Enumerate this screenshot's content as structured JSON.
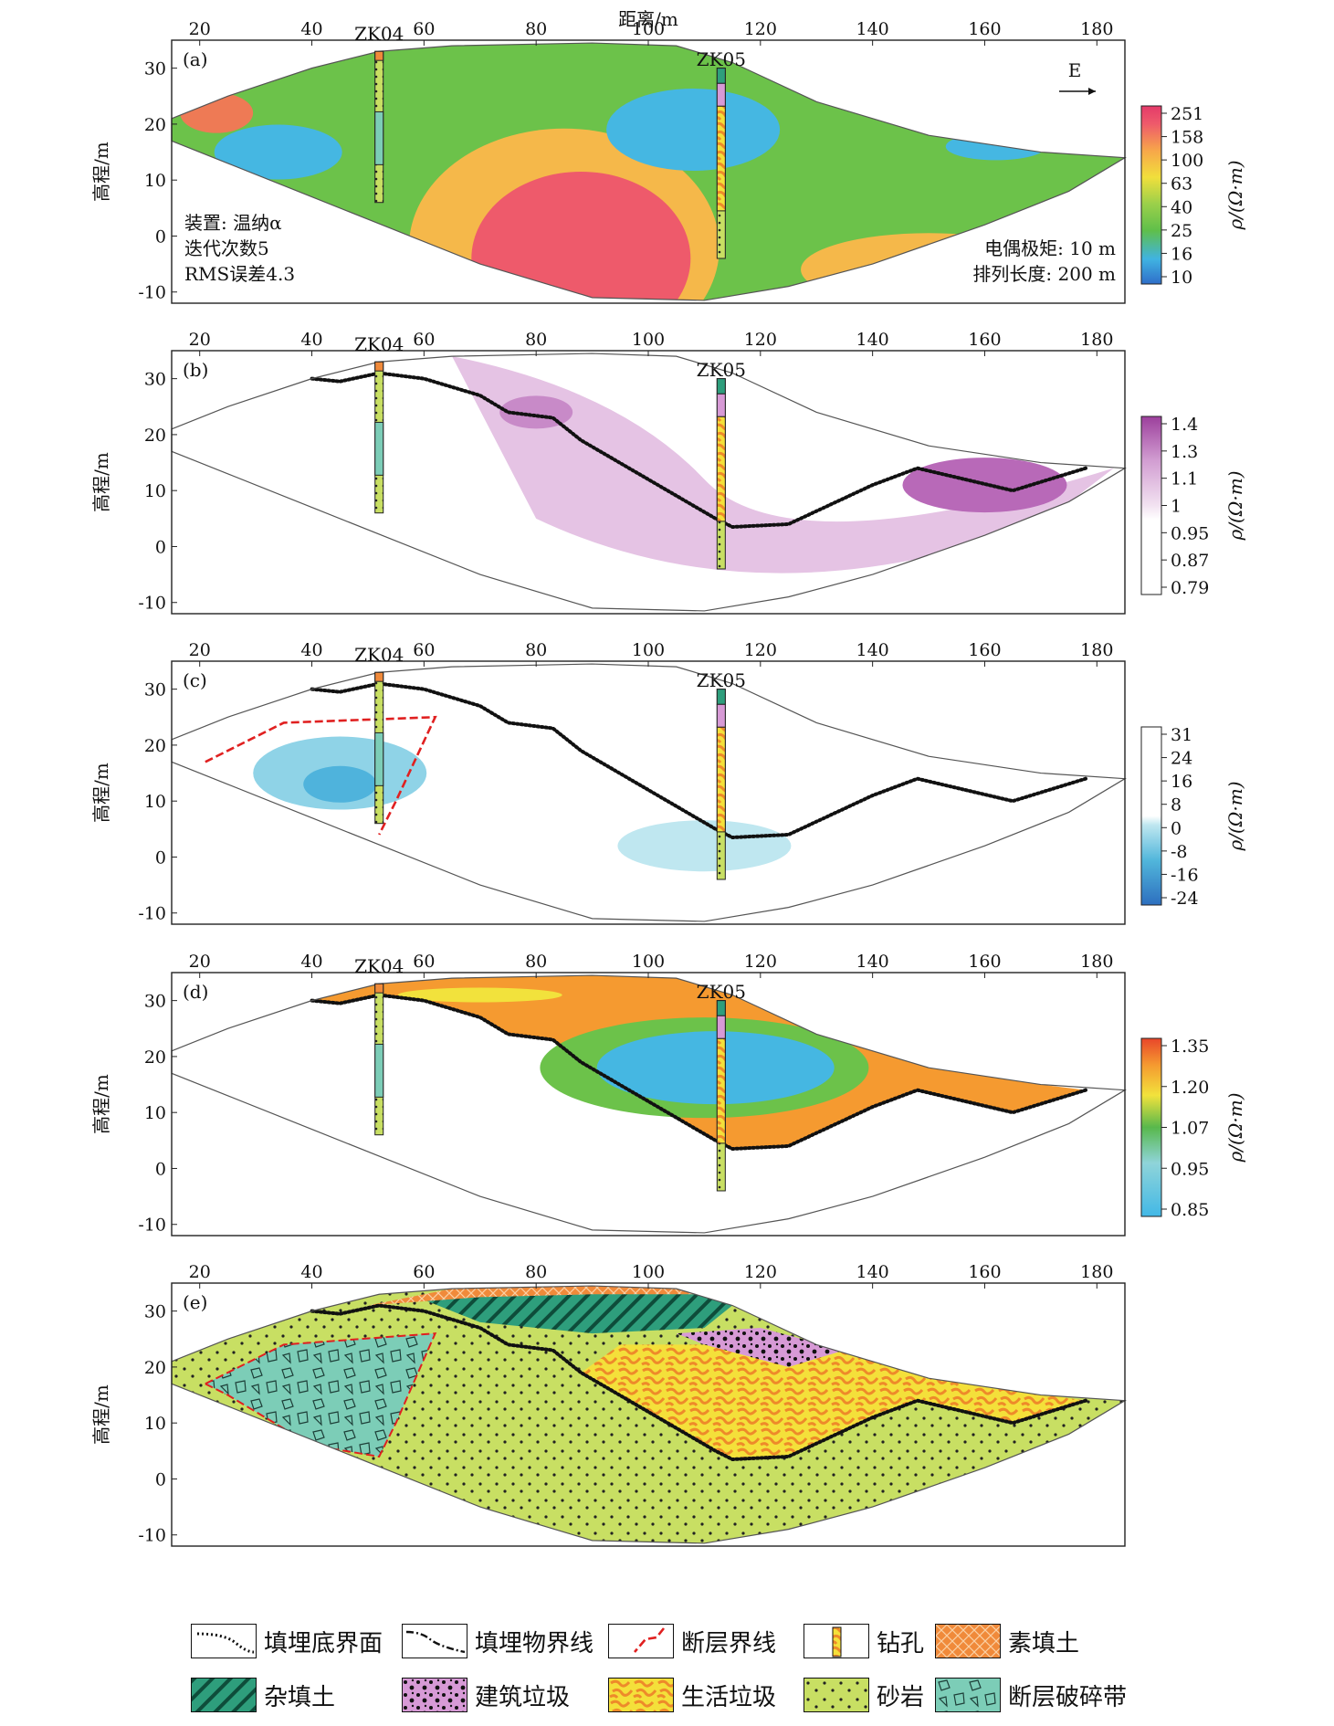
{
  "figure": {
    "xaxis_label": "距离/m",
    "yaxis_label": "高程/m",
    "x_ticks": [
      "20",
      "40",
      "60",
      "80",
      "100",
      "120",
      "140",
      "160",
      "180"
    ],
    "y_ticks": [
      "30",
      "20",
      "10",
      "0",
      "-10"
    ],
    "boreholes": [
      "ZK04",
      "ZK05"
    ],
    "east_label": "E",
    "colorbar_title": "ρ/(Ω·m)"
  },
  "panels": [
    {
      "id": "(a)",
      "colorbar_ticks": [
        "251",
        "158",
        "100",
        "63",
        "40",
        "25",
        "16",
        "10"
      ],
      "annot_left": [
        "装置: 温纳α",
        "迭代次数5",
        "RMS误差4.3"
      ],
      "annot_right": [
        "电偶极矩: 10 m",
        "排列长度: 200 m"
      ]
    },
    {
      "id": "(b)",
      "colorbar_ticks": [
        "1.4",
        "1.3",
        "1.1",
        "1",
        "0.95",
        "0.87",
        "0.79"
      ]
    },
    {
      "id": "(c)",
      "colorbar_ticks": [
        "31",
        "24",
        "16",
        "8",
        "0",
        "-8",
        "-16",
        "-24"
      ]
    },
    {
      "id": "(d)",
      "colorbar_ticks": [
        "1.35",
        "1.20",
        "1.07",
        "0.95",
        "0.85"
      ]
    },
    {
      "id": "(e)"
    }
  ],
  "legend": [
    {
      "label": "填埋底界面",
      "kind": "line-dot"
    },
    {
      "label": "填埋物界线",
      "kind": "line-dashdot"
    },
    {
      "label": "断层界线",
      "kind": "line-red"
    },
    {
      "label": "钻孔",
      "kind": "borehole"
    },
    {
      "label": "素填土",
      "kind": "fill",
      "color": "#f08a3a"
    },
    {
      "label": "杂填土",
      "kind": "fill",
      "color": "#2e9e7c"
    },
    {
      "label": "建筑垃圾",
      "kind": "fill",
      "color": "#d79ad6"
    },
    {
      "label": "生活垃圾",
      "kind": "fill",
      "color": "#f4e03a"
    },
    {
      "label": "砂岩",
      "kind": "fill",
      "color": "#c8df63"
    },
    {
      "label": "断层破碎带",
      "kind": "fill",
      "color": "#7ccdb7"
    }
  ]
}
